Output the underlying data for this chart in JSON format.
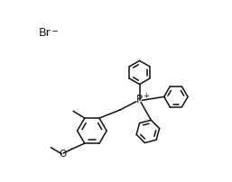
{
  "bg_color": "#ffffff",
  "line_color": "#1a1a1a",
  "lw": 1.15,
  "br_label": "Br",
  "br_minus": "−",
  "p_label": "P",
  "p_plus": "+",
  "o_label": "O",
  "r_ph": 17,
  "r_main": 21
}
